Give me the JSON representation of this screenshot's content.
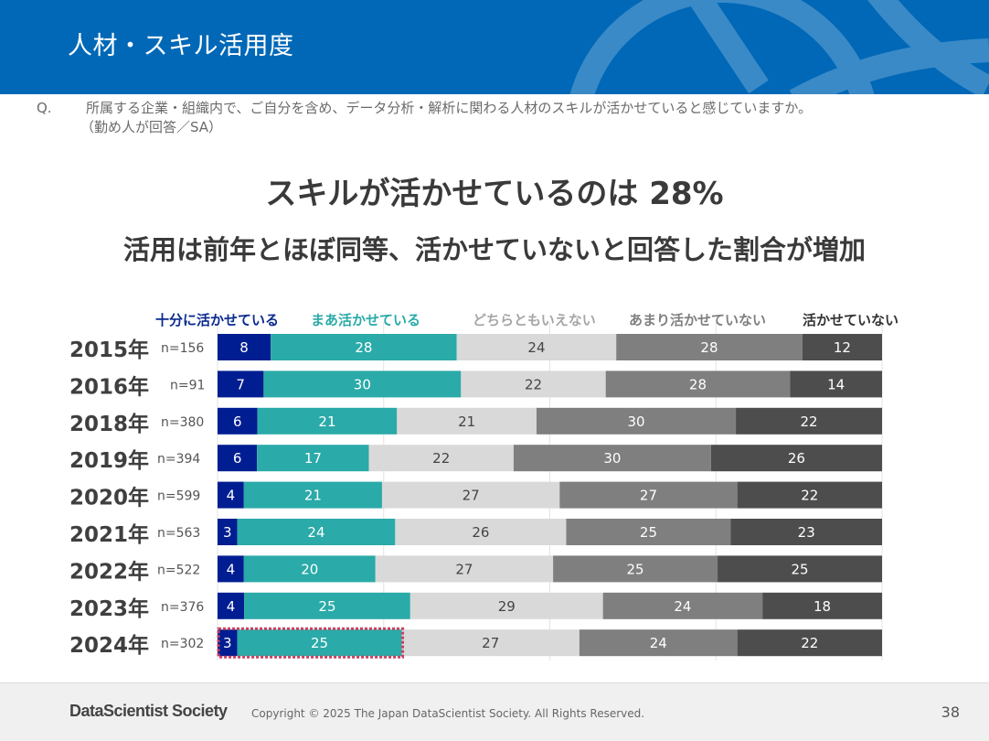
{
  "header": {
    "title": "人材・スキル活用度"
  },
  "question": {
    "mark": "Q.",
    "text": "所属する企業・組織内で、ご自分を含め、データ分析・解析に関わる人材のスキルが活かせていると感じていますか。",
    "sub": "（勤め人が回答／SA）"
  },
  "headline": {
    "main": "スキルが活かせているのは 28%",
    "sub": "活用は前年とほぼ同等、活かせていないと回答した割合が増加"
  },
  "colors": {
    "header_bg": "#0068b7",
    "fully": "#001e91",
    "somewhat": "#2aaaa8",
    "neutral": "#d9d9d9",
    "not_much": "#7f7f7f",
    "not_at_all": "#4d4d4d",
    "highlight": "#c9405f"
  },
  "chart_data": {
    "type": "bar",
    "orientation": "horizontal",
    "stacked": true,
    "percent_stacked": true,
    "categories": [
      "2015年",
      "2016年",
      "2018年",
      "2019年",
      "2020年",
      "2021年",
      "2022年",
      "2023年",
      "2024年"
    ],
    "sample_sizes": [
      "n=156",
      "n=91",
      "n=380",
      "n=394",
      "n=599",
      "n=563",
      "n=522",
      "n=376",
      "n=302"
    ],
    "series": [
      {
        "name": "十分に活かせている",
        "values": [
          8,
          7,
          6,
          6,
          4,
          3,
          4,
          4,
          3
        ]
      },
      {
        "name": "まあ活かせている",
        "values": [
          28,
          30,
          21,
          17,
          21,
          24,
          20,
          25,
          25
        ]
      },
      {
        "name": "どちらともいえない",
        "values": [
          24,
          22,
          21,
          22,
          27,
          26,
          27,
          29,
          27
        ]
      },
      {
        "name": "あまり活かせていない",
        "values": [
          28,
          28,
          30,
          30,
          27,
          25,
          25,
          24,
          24
        ]
      },
      {
        "name": "活かせていない",
        "values": [
          12,
          14,
          22,
          26,
          22,
          23,
          25,
          18,
          22
        ]
      }
    ],
    "xlim": [
      0,
      100
    ],
    "grid": true,
    "legend_position": "top",
    "highlight": {
      "category": "2024年",
      "series": [
        "十分に活かせている",
        "まあ活かせている"
      ],
      "style": "dotted-outline"
    },
    "title": "",
    "xlabel": "",
    "ylabel": ""
  },
  "footer": {
    "brand": "DataScientist Society",
    "copyright": "Copyright © 2025 The Japan DataScientist Society. All Rights Reserved.",
    "page": "38"
  }
}
